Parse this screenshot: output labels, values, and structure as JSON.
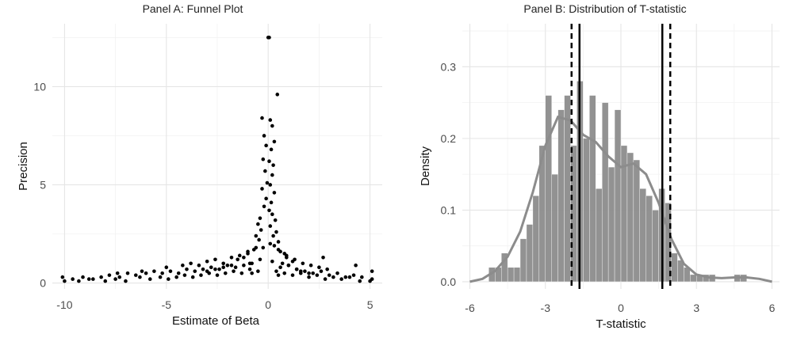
{
  "chart_data": [
    {
      "type": "scatter",
      "title": "Panel A: Funnel Plot",
      "xlabel": "Estimate of Beta",
      "ylabel": "Precision",
      "xlim": [
        -10.6,
        5.6
      ],
      "ylim": [
        -0.3,
        13.2
      ],
      "xticks": [
        -10,
        -5,
        0,
        5
      ],
      "yticks": [
        0,
        5,
        10
      ],
      "grid": true,
      "legend": "none",
      "point_color": "#000000",
      "series": [
        {
          "x": [
            0.0,
            0.05,
            0.45,
            -0.3,
            0.1,
            0.2,
            -0.2,
            0.3,
            -0.1,
            0.15,
            -0.25,
            0.05,
            0.25,
            -0.15,
            0.2,
            -0.05,
            0.1,
            -0.3,
            0.3,
            -0.1,
            0.15,
            -0.2,
            0.05,
            0.2,
            -0.4,
            0.35,
            -0.5,
            0.1,
            -0.35,
            0.4,
            -0.6,
            0.25,
            -0.45,
            0.5,
            0.3,
            -0.25,
            -0.7,
            0.6,
            -1.0,
            0.8,
            -1.2,
            0.9,
            -1.5,
            1.2,
            -0.9,
            0.7,
            -1.8,
            1.0,
            -2.2,
            1.4,
            -2.6,
            1.6,
            -3.0,
            2.0,
            -0.8,
            0.5,
            -10.1,
            -9.6,
            -9.1,
            -8.6,
            -8.2,
            -7.8,
            -7.3,
            -6.9,
            -6.5,
            -6.0,
            -5.6,
            -5.2,
            -4.8,
            -4.4,
            -4.0,
            -3.6,
            -3.2,
            -2.8,
            -2.4,
            -2.0,
            -1.6,
            -1.2,
            -0.8,
            -0.4,
            0.2,
            0.6,
            1.0,
            1.4,
            1.8,
            2.2,
            2.6,
            3.0,
            3.4,
            3.8,
            4.2,
            4.6,
            5.1,
            -10.0,
            -9.3,
            -8.8,
            -8.0,
            -7.5,
            -7.0,
            -6.3,
            -5.8,
            -5.3,
            -4.9,
            -4.5,
            -4.1,
            -3.7,
            -3.3,
            -2.9,
            -2.5,
            -2.1,
            -1.7,
            -1.3,
            -0.9,
            -0.5,
            0.4,
            0.8,
            1.2,
            1.6,
            2.0,
            2.4,
            2.8,
            3.2,
            3.6,
            4.0,
            4.5,
            5.0,
            -4.2,
            -3.8,
            -3.4,
            -3.0,
            -2.6,
            -2.2,
            -1.8,
            -1.4,
            -1.0,
            -0.6,
            0.1,
            0.5,
            0.9,
            1.3,
            1.7,
            2.1,
            2.5,
            2.9,
            -5.0,
            -6.2,
            -7.4,
            4.3,
            5.1,
            2.7
          ],
          "y": [
            12.5,
            12.5,
            9.6,
            8.4,
            8.3,
            8.0,
            7.5,
            7.2,
            7.0,
            6.8,
            6.3,
            6.2,
            6.0,
            5.7,
            5.5,
            5.1,
            5.0,
            4.8,
            4.6,
            4.3,
            4.1,
            3.9,
            3.7,
            3.5,
            3.3,
            3.2,
            3.0,
            2.9,
            2.7,
            2.6,
            2.4,
            2.4,
            2.2,
            2.1,
            1.9,
            1.8,
            1.7,
            1.6,
            1.5,
            1.5,
            1.3,
            1.3,
            1.2,
            1.1,
            1.0,
            1.0,
            0.9,
            0.9,
            0.8,
            0.7,
            0.7,
            0.6,
            0.6,
            0.5,
            0.5,
            0.4,
            0.3,
            0.2,
            0.3,
            0.2,
            0.3,
            0.4,
            0.3,
            0.5,
            0.4,
            0.5,
            0.6,
            0.5,
            0.6,
            0.5,
            0.7,
            0.6,
            0.7,
            0.8,
            0.7,
            0.9,
            0.8,
            0.9,
            1.0,
            1.2,
            1.1,
            0.8,
            0.9,
            0.7,
            0.6,
            0.5,
            0.6,
            0.4,
            0.5,
            0.3,
            0.4,
            0.3,
            0.2,
            0.1,
            0.1,
            0.2,
            0.1,
            0.2,
            0.1,
            0.3,
            0.2,
            0.3,
            0.2,
            0.3,
            0.4,
            0.3,
            0.4,
            0.5,
            0.4,
            0.5,
            0.6,
            0.5,
            0.7,
            0.6,
            0.6,
            0.5,
            0.4,
            0.5,
            0.3,
            0.4,
            0.2,
            0.3,
            0.2,
            0.3,
            0.1,
            0.1,
            0.9,
            1.0,
            0.9,
            1.1,
            1.2,
            1.0,
            1.3,
            1.4,
            1.6,
            1.8,
            2.0,
            1.7,
            1.4,
            1.2,
            1.0,
            0.9,
            0.8,
            0.7,
            0.8,
            0.6,
            0.5,
            0.9,
            0.6,
            1.3
          ]
        }
      ]
    },
    {
      "type": "bar",
      "title": "Panel B: Distribution of T-statistic",
      "xlabel": "T-statistic",
      "ylabel": "Density",
      "xlim": [
        -6.3,
        6.3
      ],
      "ylim": [
        -0.01,
        0.36
      ],
      "xticks": [
        -6,
        -3,
        0,
        3,
        6
      ],
      "yticks": [
        0.0,
        0.1,
        0.2,
        0.3
      ],
      "grid": true,
      "legend": "none",
      "bar_color": "#8c8c8c",
      "curve_color": "#8c8c8c",
      "bin_width": 0.25,
      "bin_starts": [
        -5.25,
        -5.0,
        -4.75,
        -4.5,
        -4.25,
        -4.0,
        -3.75,
        -3.5,
        -3.25,
        -3.0,
        -2.75,
        -2.5,
        -2.25,
        -2.0,
        -1.75,
        -1.5,
        -1.25,
        -1.0,
        -0.75,
        -0.5,
        -0.25,
        0.0,
        0.25,
        0.5,
        0.75,
        1.0,
        1.25,
        1.5,
        1.75,
        2.0,
        2.25,
        2.5,
        2.75,
        3.0,
        3.25,
        3.5,
        4.5,
        4.75
      ],
      "densities": [
        0.02,
        0.02,
        0.04,
        0.02,
        0.02,
        0.06,
        0.08,
        0.12,
        0.19,
        0.26,
        0.15,
        0.24,
        0.26,
        0.19,
        0.28,
        0.2,
        0.26,
        0.13,
        0.25,
        0.16,
        0.24,
        0.19,
        0.18,
        0.17,
        0.13,
        0.12,
        0.1,
        0.13,
        0.11,
        0.04,
        0.03,
        0.02,
        0.01,
        0.01,
        0.01,
        0.01,
        0.01,
        0.01
      ],
      "density_curve": {
        "x": [
          -6.0,
          -5.5,
          -5.0,
          -4.5,
          -4.0,
          -3.5,
          -3.0,
          -2.5,
          -2.0,
          -1.5,
          -1.0,
          -0.5,
          0.0,
          0.5,
          1.0,
          1.5,
          2.0,
          2.5,
          3.0,
          3.5,
          4.0,
          4.5,
          5.0,
          5.5,
          6.0
        ],
        "y": [
          0.0,
          0.004,
          0.015,
          0.035,
          0.07,
          0.125,
          0.19,
          0.23,
          0.225,
          0.205,
          0.195,
          0.175,
          0.16,
          0.165,
          0.15,
          0.11,
          0.06,
          0.025,
          0.01,
          0.006,
          0.005,
          0.006,
          0.006,
          0.004,
          0.0
        ]
      },
      "vlines_solid": [
        -1.645,
        1.645
      ],
      "vlines_dashed": [
        -1.96,
        1.96
      ]
    }
  ]
}
